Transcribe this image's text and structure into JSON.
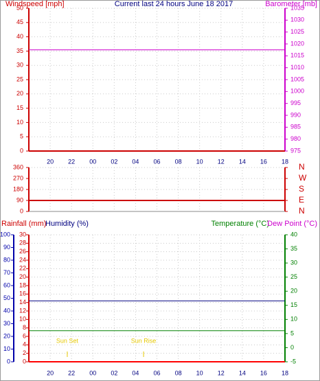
{
  "chart_data": [
    {
      "type": "line",
      "title": "Current last 24 hours June 18 2017",
      "axis_labels": [
        {
          "text": "Windspeed [mph]",
          "color": "#cc0000"
        },
        {
          "text": "Barometer [mb]",
          "color": "#cc00cc"
        }
      ],
      "xlim": [
        0,
        24
      ],
      "xticks": [
        {
          "value": 2,
          "label": "20"
        },
        {
          "value": 4,
          "label": "22"
        },
        {
          "value": 6,
          "label": "00"
        },
        {
          "value": 8,
          "label": "02"
        },
        {
          "value": 10,
          "label": "04"
        },
        {
          "value": 12,
          "label": "06"
        },
        {
          "value": 14,
          "label": "08"
        },
        {
          "value": 16,
          "label": "10"
        },
        {
          "value": 18,
          "label": "12"
        },
        {
          "value": 20,
          "label": "14"
        },
        {
          "value": 22,
          "label": "16"
        },
        {
          "value": 24,
          "label": "18"
        }
      ],
      "ylim": [
        0,
        50
      ],
      "yticks": [
        0,
        5,
        10,
        15,
        20,
        25,
        30,
        35,
        40,
        45,
        50
      ],
      "y_color": "#cc0000",
      "y2lim": [
        975,
        1035
      ],
      "y2ticks": [
        975,
        980,
        985,
        990,
        995,
        1000,
        1005,
        1010,
        1015,
        1020,
        1025,
        1030,
        1035
      ],
      "y2_color": "#cc00cc",
      "grid": true,
      "series": [
        {
          "color": "#cc0000",
          "x": [
            0,
            24
          ],
          "values": [
            0,
            0
          ]
        },
        {
          "color": "#cc00cc",
          "axis": "y2",
          "x": [
            0,
            24
          ],
          "values": [
            1017.5,
            1017.5
          ]
        }
      ]
    },
    {
      "type": "line",
      "xlim": [
        0,
        24
      ],
      "xticks": [
        2,
        4,
        6,
        8,
        10,
        12,
        14,
        16,
        18,
        20,
        22,
        24
      ],
      "ylim": [
        0,
        360
      ],
      "yticks": [
        0,
        90,
        180,
        270,
        360
      ],
      "y_color": "#cc0000",
      "y2lim": [
        0,
        360
      ],
      "y2ticks": [
        {
          "value": 0,
          "label": "N"
        },
        {
          "value": 90,
          "label": "E"
        },
        {
          "value": 180,
          "label": "S"
        },
        {
          "value": 270,
          "label": "W"
        },
        {
          "value": 360,
          "label": "N"
        }
      ],
      "y2_color": "#cc0000",
      "grid": true,
      "series": [
        {
          "color": "#cc0000",
          "x": [
            0,
            24
          ],
          "values": [
            90,
            90
          ]
        }
      ]
    },
    {
      "type": "line",
      "axis_labels": [
        {
          "text": "Rainfall (mm)",
          "color": "#cc0000"
        },
        {
          "text": "Humidity (%)",
          "color": "#000080"
        },
        {
          "text": "Temperature (°C)",
          "color": "#008000"
        },
        {
          "text": "Dew Point (°C)",
          "color": "#cc00cc"
        }
      ],
      "xlim": [
        0,
        24
      ],
      "xticks": [
        {
          "value": 2,
          "label": "20"
        },
        {
          "value": 4,
          "label": "22"
        },
        {
          "value": 6,
          "label": "00"
        },
        {
          "value": 8,
          "label": "02"
        },
        {
          "value": 10,
          "label": "04"
        },
        {
          "value": 12,
          "label": "06"
        },
        {
          "value": 14,
          "label": "08"
        },
        {
          "value": 16,
          "label": "10"
        },
        {
          "value": 18,
          "label": "12"
        },
        {
          "value": 20,
          "label": "14"
        },
        {
          "value": 22,
          "label": "16"
        },
        {
          "value": 24,
          "label": "18"
        }
      ],
      "ylim": [
        0,
        30
      ],
      "yticks": [
        0,
        2,
        4,
        6,
        8,
        10,
        12,
        14,
        16,
        18,
        20,
        22,
        24,
        26,
        28,
        30
      ],
      "y_color": "#cc0000",
      "y3lim": [
        0,
        100
      ],
      "y3ticks": [
        0,
        10,
        20,
        30,
        40,
        50,
        60,
        70,
        80,
        90,
        100
      ],
      "y3_color": "#0000aa",
      "y2lim": [
        -5,
        40
      ],
      "y2ticks": [
        -5,
        0,
        5,
        10,
        15,
        20,
        25,
        30,
        35,
        40
      ],
      "y2_color": "#008000",
      "grid": true,
      "series": [
        {
          "color": "#ff0000",
          "x": [
            0,
            24
          ],
          "values": [
            0,
            0
          ]
        },
        {
          "color": "#000080",
          "axis": "y3",
          "x": [
            0,
            24
          ],
          "values": [
            48,
            48
          ]
        },
        {
          "color": "#008000",
          "axis": "y2",
          "x": [
            0,
            24
          ],
          "values": [
            6,
            6
          ]
        }
      ],
      "annotations": [
        {
          "text": "Sun Set",
          "x": 3.6
        },
        {
          "text": "Sun Rise",
          "x": 10.75
        }
      ]
    }
  ]
}
